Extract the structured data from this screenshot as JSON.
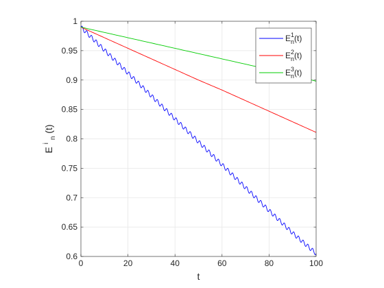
{
  "chart_data": {
    "type": "line",
    "xlabel": "t",
    "ylabel": {
      "base": "E",
      "sup": "i",
      "sub": "n",
      "suffix": "(t)"
    },
    "xlim": [
      0,
      100
    ],
    "ylim": [
      0.6,
      1.0
    ],
    "xticks": [
      0,
      20,
      40,
      60,
      80,
      100
    ],
    "yticks": [
      0.6,
      0.65,
      0.7,
      0.75,
      0.8,
      0.85,
      0.9,
      0.95,
      1
    ],
    "xtick_labels": [
      "0",
      "20",
      "40",
      "60",
      "80",
      "100"
    ],
    "ytick_labels": [
      "0.6",
      "0.65",
      "0.7",
      "0.75",
      "0.8",
      "0.85",
      "0.9",
      "0.95",
      "1"
    ],
    "grid": true,
    "legend_position": "top-right",
    "series": [
      {
        "name": "E_n^1(t)",
        "legend": {
          "base": "E",
          "sup": "1",
          "sub": "n",
          "suffix": "(t)"
        },
        "color": "#0000ff",
        "x": [
          0,
          10,
          20,
          30,
          40,
          50,
          60,
          70,
          80,
          90,
          100
        ],
        "y": [
          0.99,
          0.951,
          0.912,
          0.873,
          0.834,
          0.795,
          0.756,
          0.717,
          0.678,
          0.64,
          0.605
        ],
        "oscillation": {
          "amplitude": 0.0035,
          "period": 2
        }
      },
      {
        "name": "E_n^2(t)",
        "legend": {
          "base": "E",
          "sup": "2",
          "sub": "n",
          "suffix": "(t)"
        },
        "color": "#ff0000",
        "x": [
          0,
          10,
          20,
          30,
          40,
          50,
          60,
          70,
          80,
          90,
          100
        ],
        "y": [
          0.99,
          0.972,
          0.954,
          0.936,
          0.918,
          0.9,
          0.883,
          0.865,
          0.847,
          0.829,
          0.811
        ]
      },
      {
        "name": "E_n^3(t)",
        "legend": {
          "base": "E",
          "sup": "3",
          "sub": "n",
          "suffix": "(t)"
        },
        "color": "#00cc00",
        "x": [
          0,
          10,
          20,
          30,
          40,
          50,
          60,
          70,
          80,
          90,
          100
        ],
        "y": [
          0.99,
          0.981,
          0.972,
          0.963,
          0.954,
          0.945,
          0.936,
          0.927,
          0.918,
          0.909,
          0.898
        ]
      }
    ]
  }
}
